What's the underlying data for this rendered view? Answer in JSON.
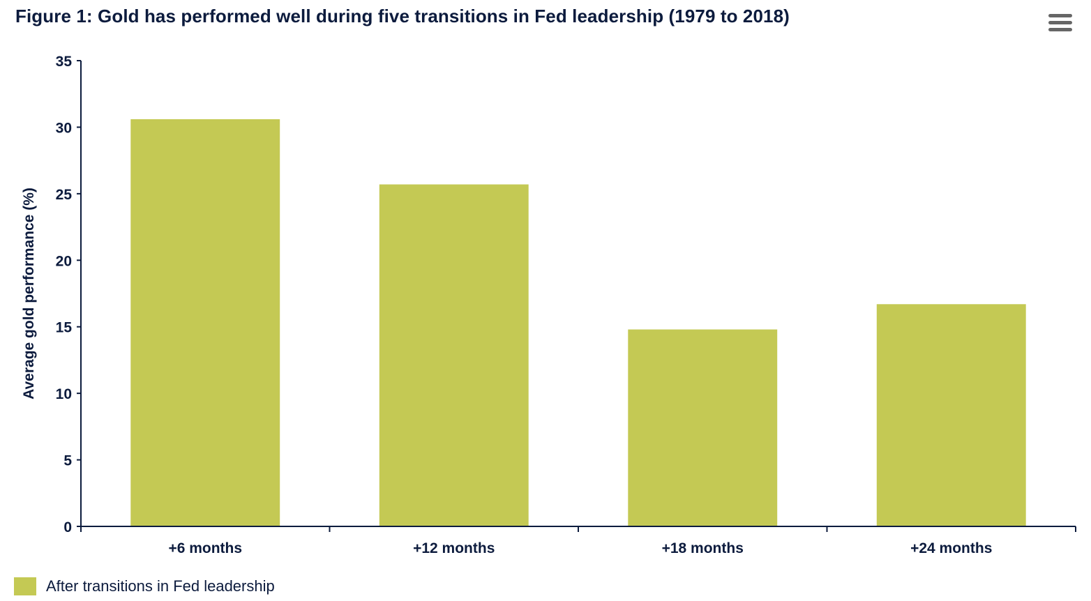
{
  "title": "Figure 1: Gold has performed well during five transitions in Fed leadership (1979 to 2018)",
  "menu": {
    "icon": "hamburger-menu-icon"
  },
  "colors": {
    "bar": "#c4c954",
    "axis": "#0c1b3d",
    "text": "#0c1b3d"
  },
  "chart_data": {
    "type": "bar",
    "title": "Figure 1: Gold has performed well during five transitions in Fed leadership (1979 to 2018)",
    "categories": [
      "+6 months",
      "+12 months",
      "+18 months",
      "+24 months"
    ],
    "series": [
      {
        "name": "After transitions in Fed leadership",
        "values": [
          30.6,
          25.7,
          14.8,
          16.7
        ]
      }
    ],
    "xlabel": "",
    "ylabel": "Average gold performance (%)",
    "ylim": [
      0,
      35
    ],
    "yticks": [
      0,
      5,
      10,
      15,
      20,
      25,
      30,
      35
    ],
    "grid": false,
    "legend": "bottom-left"
  }
}
